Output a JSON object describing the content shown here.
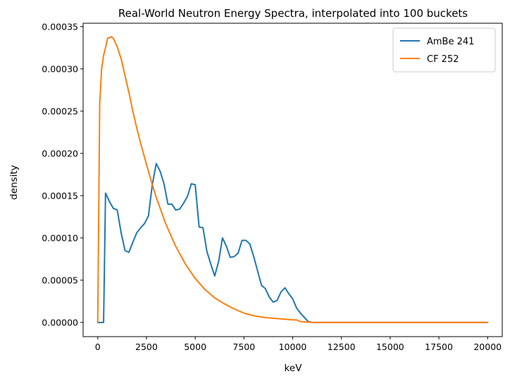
{
  "chart_data": {
    "type": "line",
    "title": "Real-World Neutron Energy Spectra, interpolated into 100 buckets",
    "xlabel": "keV",
    "ylabel": "density",
    "xlim": [
      -750,
      20750
    ],
    "ylim": [
      -1.68e-05,
      0.000354
    ],
    "xticks": [
      0,
      2500,
      5000,
      7500,
      10000,
      12500,
      15000,
      17500,
      20000
    ],
    "xtick_labels": [
      "0",
      "2500",
      "5000",
      "7500",
      "10000",
      "12500",
      "15000",
      "17500",
      "20000"
    ],
    "yticks": [
      0,
      5e-05,
      0.0001,
      0.00015,
      0.0002,
      0.00025,
      0.0003,
      0.00035
    ],
    "ytick_labels": [
      "0.00000",
      "0.00005",
      "0.00010",
      "0.00015",
      "0.00020",
      "0.00025",
      "0.00030",
      "0.00035"
    ],
    "grid": false,
    "legend_position": "top-right",
    "series": [
      {
        "name": "AmBe 241",
        "color": "#1f77b4",
        "x": [
          0,
          150,
          300,
          400,
          600,
          800,
          1000,
          1200,
          1400,
          1600,
          1800,
          2000,
          2200,
          2400,
          2600,
          2800,
          3000,
          3200,
          3400,
          3600,
          3800,
          4000,
          4200,
          4400,
          4600,
          4800,
          5000,
          5200,
          5400,
          5600,
          5800,
          6000,
          6200,
          6400,
          6600,
          6800,
          7000,
          7200,
          7400,
          7600,
          7800,
          8000,
          8200,
          8400,
          8600,
          8800,
          9000,
          9200,
          9400,
          9600,
          9800,
          10000,
          10200,
          10400,
          10600,
          10800,
          11000,
          12000,
          14000,
          16000,
          18000,
          20000
        ],
        "y": [
          0,
          0,
          0,
          0.000153,
          0.000143,
          0.000135,
          0.000133,
          0.000106,
          8.5e-05,
          8.3e-05,
          9.5e-05,
          0.000106,
          0.000112,
          0.000117,
          0.000126,
          0.000163,
          0.000188,
          0.000179,
          0.000164,
          0.00014,
          0.00014,
          0.000133,
          0.000134,
          0.000141,
          0.000149,
          0.000164,
          0.000163,
          0.000113,
          0.000112,
          8.4e-05,
          6.9e-05,
          5.5e-05,
          7.2e-05,
          0.0001,
          9e-05,
          7.7e-05,
          7.8e-05,
          8.2e-05,
          9.7e-05,
          9.7e-05,
          9.3e-05,
          7.8e-05,
          6.1e-05,
          4.4e-05,
          4e-05,
          3e-05,
          2.4e-05,
          2.6e-05,
          3.6e-05,
          4.1e-05,
          3.4e-05,
          2.8e-05,
          1.7e-05,
          1.1e-05,
          6e-06,
          1e-06,
          0,
          0,
          0,
          0,
          0,
          0
        ]
      },
      {
        "name": "CF 252",
        "color": "#ff7f0e",
        "x": [
          0,
          100,
          200,
          300,
          400,
          500,
          600,
          700,
          800,
          900,
          1000,
          1200,
          1400,
          1600,
          1800,
          2000,
          2200,
          2500,
          2800,
          3000,
          3500,
          4000,
          4500,
          5000,
          5500,
          6000,
          6500,
          7000,
          7500,
          8000,
          8500,
          9000,
          9500,
          10000,
          10200,
          10400,
          11000,
          12000,
          14000,
          16000,
          18000,
          20000
        ],
        "y": [
          0,
          0.000258,
          0.0003,
          0.000316,
          0.000325,
          0.000336,
          0.000337,
          0.000338,
          0.000336,
          0.000331,
          0.000326,
          0.000312,
          0.000292,
          0.000272,
          0.00025,
          0.00023,
          0.000212,
          0.000187,
          0.000163,
          0.000148,
          0.000116,
          9e-05,
          6.9e-05,
          5.2e-05,
          3.9e-05,
          2.9e-05,
          2.2e-05,
          1.6e-05,
          1.1e-05,
          8e-06,
          6e-06,
          5e-06,
          4e-06,
          3e-06,
          3e-06,
          1e-06,
          0,
          0,
          0,
          0,
          0,
          0
        ]
      }
    ]
  }
}
